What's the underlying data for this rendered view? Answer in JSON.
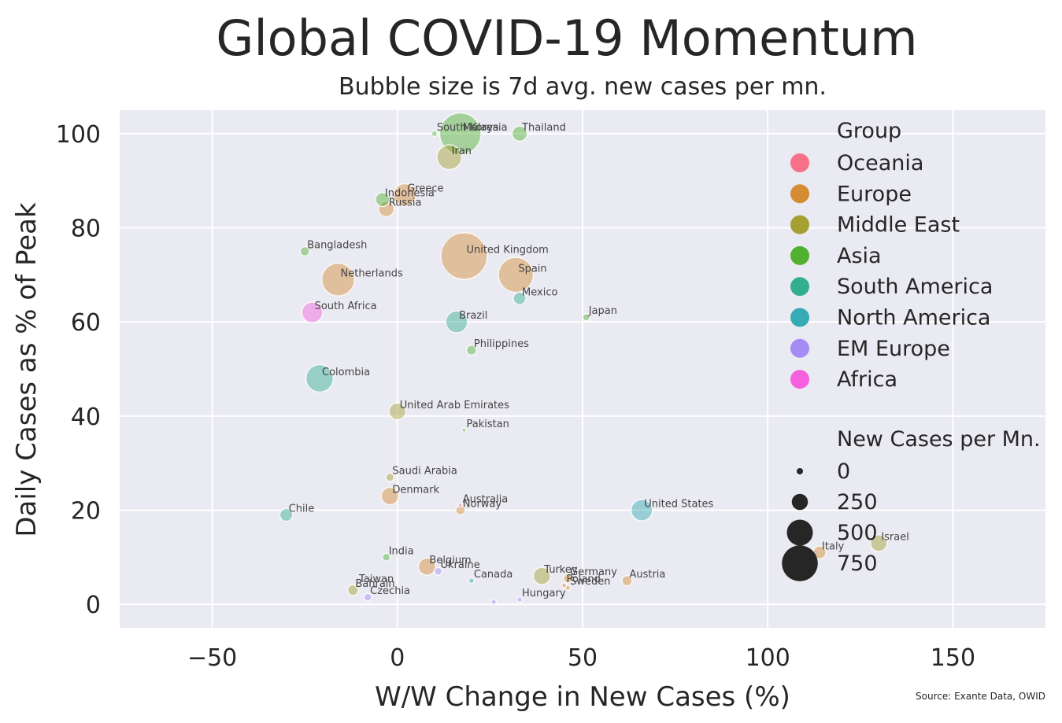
{
  "title": "Global COVID-19 Momentum",
  "subtitle": "Bubble size is 7d avg. new cases per mn.",
  "source": "Source: Exante Data, OWID",
  "colors": {
    "background": "#eaeaf2",
    "grid": "#ffffff",
    "Oceania": "#f77189",
    "Europe": "#d58c32",
    "Middle East": "#a4a031",
    "Asia": "#50b131",
    "South America": "#34ae91",
    "North America": "#37abb4",
    "EM Europe": "#a48cf4",
    "Africa": "#f561dd"
  },
  "chart_data": {
    "type": "scatter",
    "title": "Global COVID-19 Momentum",
    "subtitle": "Bubble size is 7d avg. new cases per mn.",
    "xlabel": "W/W Change in New Cases (%)",
    "ylabel": "Daily Cases as % of Peak",
    "xlim": [
      -75,
      175
    ],
    "ylim": [
      -5,
      105
    ],
    "xticks": [
      -50,
      0,
      50,
      100,
      150
    ],
    "xtick_labels": [
      "−50",
      "0",
      "50",
      "100",
      "150"
    ],
    "yticks": [
      0,
      20,
      40,
      60,
      80,
      100
    ],
    "ytick_labels": [
      "0",
      "20",
      "40",
      "60",
      "80",
      "100"
    ],
    "grid": true,
    "legend": {
      "position": "right",
      "group_title": "Group",
      "groups": [
        {
          "name": "Oceania",
          "color": "#f77189"
        },
        {
          "name": "Europe",
          "color": "#d58c32"
        },
        {
          "name": "Middle East",
          "color": "#a4a031"
        },
        {
          "name": "Asia",
          "color": "#50b131"
        },
        {
          "name": "South America",
          "color": "#34ae91"
        },
        {
          "name": "North America",
          "color": "#37abb4"
        },
        {
          "name": "EM Europe",
          "color": "#a48cf4"
        },
        {
          "name": "Africa",
          "color": "#f561dd"
        }
      ],
      "size_title": "New Cases per Mn.",
      "sizes": [
        {
          "label": "0",
          "value": 0
        },
        {
          "label": "250",
          "value": 250
        },
        {
          "label": "500",
          "value": 500
        },
        {
          "label": "750",
          "value": 750
        }
      ]
    },
    "points": [
      {
        "name": "South Korea",
        "group": "Asia",
        "x": 10,
        "y": 100,
        "size": 15
      },
      {
        "name": "Malaysia",
        "group": "Asia",
        "x": 17,
        "y": 100,
        "size": 1000
      },
      {
        "name": "Thailand",
        "group": "Asia",
        "x": 33,
        "y": 100,
        "size": 125
      },
      {
        "name": "Iran",
        "group": "Middle East",
        "x": 14,
        "y": 95,
        "size": 350
      },
      {
        "name": "Indonesia",
        "group": "Asia",
        "x": -4,
        "y": 86,
        "size": 110
      },
      {
        "name": "Greece",
        "group": "Europe",
        "x": 2,
        "y": 87,
        "size": 280
      },
      {
        "name": "Russia",
        "group": "Europe",
        "x": -3,
        "y": 84,
        "size": 135
      },
      {
        "name": "Bangladesh",
        "group": "Asia",
        "x": -25,
        "y": 75,
        "size": 45
      },
      {
        "name": "United Kingdom",
        "group": "Europe",
        "x": 18,
        "y": 74,
        "size": 1260
      },
      {
        "name": "Netherlands",
        "group": "Europe",
        "x": -16,
        "y": 69,
        "size": 620
      },
      {
        "name": "Spain",
        "group": "Europe",
        "x": 32,
        "y": 70,
        "size": 710
      },
      {
        "name": "Mexico",
        "group": "South America",
        "x": 33,
        "y": 65,
        "size": 85
      },
      {
        "name": "South Africa",
        "group": "Africa",
        "x": -23,
        "y": 62,
        "size": 245
      },
      {
        "name": "Japan",
        "group": "Asia",
        "x": 51,
        "y": 61,
        "size": 25
      },
      {
        "name": "Brazil",
        "group": "South America",
        "x": 16,
        "y": 60,
        "size": 270
      },
      {
        "name": "Philippines",
        "group": "Asia",
        "x": 20,
        "y": 54,
        "size": 50
      },
      {
        "name": "Colombia",
        "group": "South America",
        "x": -21,
        "y": 48,
        "size": 430
      },
      {
        "name": "United Arab Emirates",
        "group": "Middle East",
        "x": 0,
        "y": 41,
        "size": 155
      },
      {
        "name": "Pakistan",
        "group": "Asia",
        "x": 18,
        "y": 37,
        "size": 7
      },
      {
        "name": "Saudi Arabia",
        "group": "Middle East",
        "x": -2,
        "y": 27,
        "size": 35
      },
      {
        "name": "Denmark",
        "group": "Europe",
        "x": -2,
        "y": 23,
        "size": 170
      },
      {
        "name": "Australia",
        "group": "Oceania",
        "x": 17,
        "y": 21,
        "size": 8
      },
      {
        "name": "Norway",
        "group": "Europe",
        "x": 17,
        "y": 20,
        "size": 45
      },
      {
        "name": "Chile",
        "group": "South America",
        "x": -30,
        "y": 19,
        "size": 90
      },
      {
        "name": "United States",
        "group": "North America",
        "x": 66,
        "y": 20,
        "size": 260
      },
      {
        "name": "Israel",
        "group": "Middle East",
        "x": 130,
        "y": 13,
        "size": 155
      },
      {
        "name": "Italy",
        "group": "Europe",
        "x": 114,
        "y": 11,
        "size": 90
      },
      {
        "name": "India",
        "group": "Asia",
        "x": -3,
        "y": 10,
        "size": 30
      },
      {
        "name": "Belgium",
        "group": "Europe",
        "x": 8,
        "y": 8,
        "size": 165
      },
      {
        "name": "Ukraine",
        "group": "EM Europe",
        "x": 11,
        "y": 7,
        "size": 30
      },
      {
        "name": "Canada",
        "group": "North America",
        "x": 20,
        "y": 5,
        "size": 15
      },
      {
        "name": "Turkey",
        "group": "Middle East",
        "x": 39,
        "y": 6,
        "size": 165
      },
      {
        "name": "Germany",
        "group": "Europe",
        "x": 46,
        "y": 5.5,
        "size": 40
      },
      {
        "name": "Austria",
        "group": "Europe",
        "x": 62,
        "y": 5,
        "size": 55
      },
      {
        "name": "Poland",
        "group": "Europe",
        "x": 45,
        "y": 4,
        "size": 10
      },
      {
        "name": "Sweden",
        "group": "Europe",
        "x": 46,
        "y": 3.5,
        "size": 12
      },
      {
        "name": "Taiwan",
        "group": "Asia",
        "x": -11,
        "y": 4,
        "size": 4
      },
      {
        "name": "Bahrain",
        "group": "Middle East",
        "x": -12,
        "y": 3,
        "size": 60
      },
      {
        "name": "Czechia",
        "group": "EM Europe",
        "x": -8,
        "y": 1.5,
        "size": 30
      },
      {
        "name": "Hungary",
        "group": "EM Europe",
        "x": 33,
        "y": 1,
        "size": 12
      },
      {
        "name": "",
        "group": "EM Europe",
        "x": 26,
        "y": 0.5,
        "size": 12
      }
    ]
  }
}
